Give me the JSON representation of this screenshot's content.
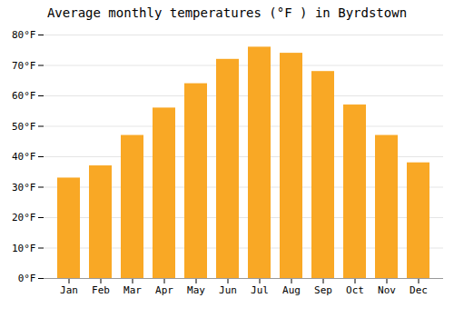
{
  "chart_data": {
    "type": "bar",
    "title": "Average monthly temperatures (°F ) in Byrdstown",
    "categories": [
      "Jan",
      "Feb",
      "Mar",
      "Apr",
      "May",
      "Jun",
      "Jul",
      "Aug",
      "Sep",
      "Oct",
      "Nov",
      "Dec"
    ],
    "values": [
      33,
      37,
      47,
      56,
      64,
      72,
      76,
      74,
      68,
      57,
      47,
      38
    ],
    "color": "#F9A825",
    "ylim": [
      0,
      80
    ],
    "yticks": [
      {
        "value": 0,
        "label": "0°F"
      },
      {
        "value": 10,
        "label": "10°F"
      },
      {
        "value": 20,
        "label": "20°F"
      },
      {
        "value": 30,
        "label": "30°F"
      },
      {
        "value": 40,
        "label": "40°F"
      },
      {
        "value": 50,
        "label": "50°F"
      },
      {
        "value": 60,
        "label": "60°F"
      },
      {
        "value": 70,
        "label": "70°F"
      },
      {
        "value": 80,
        "label": "80°F"
      }
    ],
    "grid": true
  }
}
